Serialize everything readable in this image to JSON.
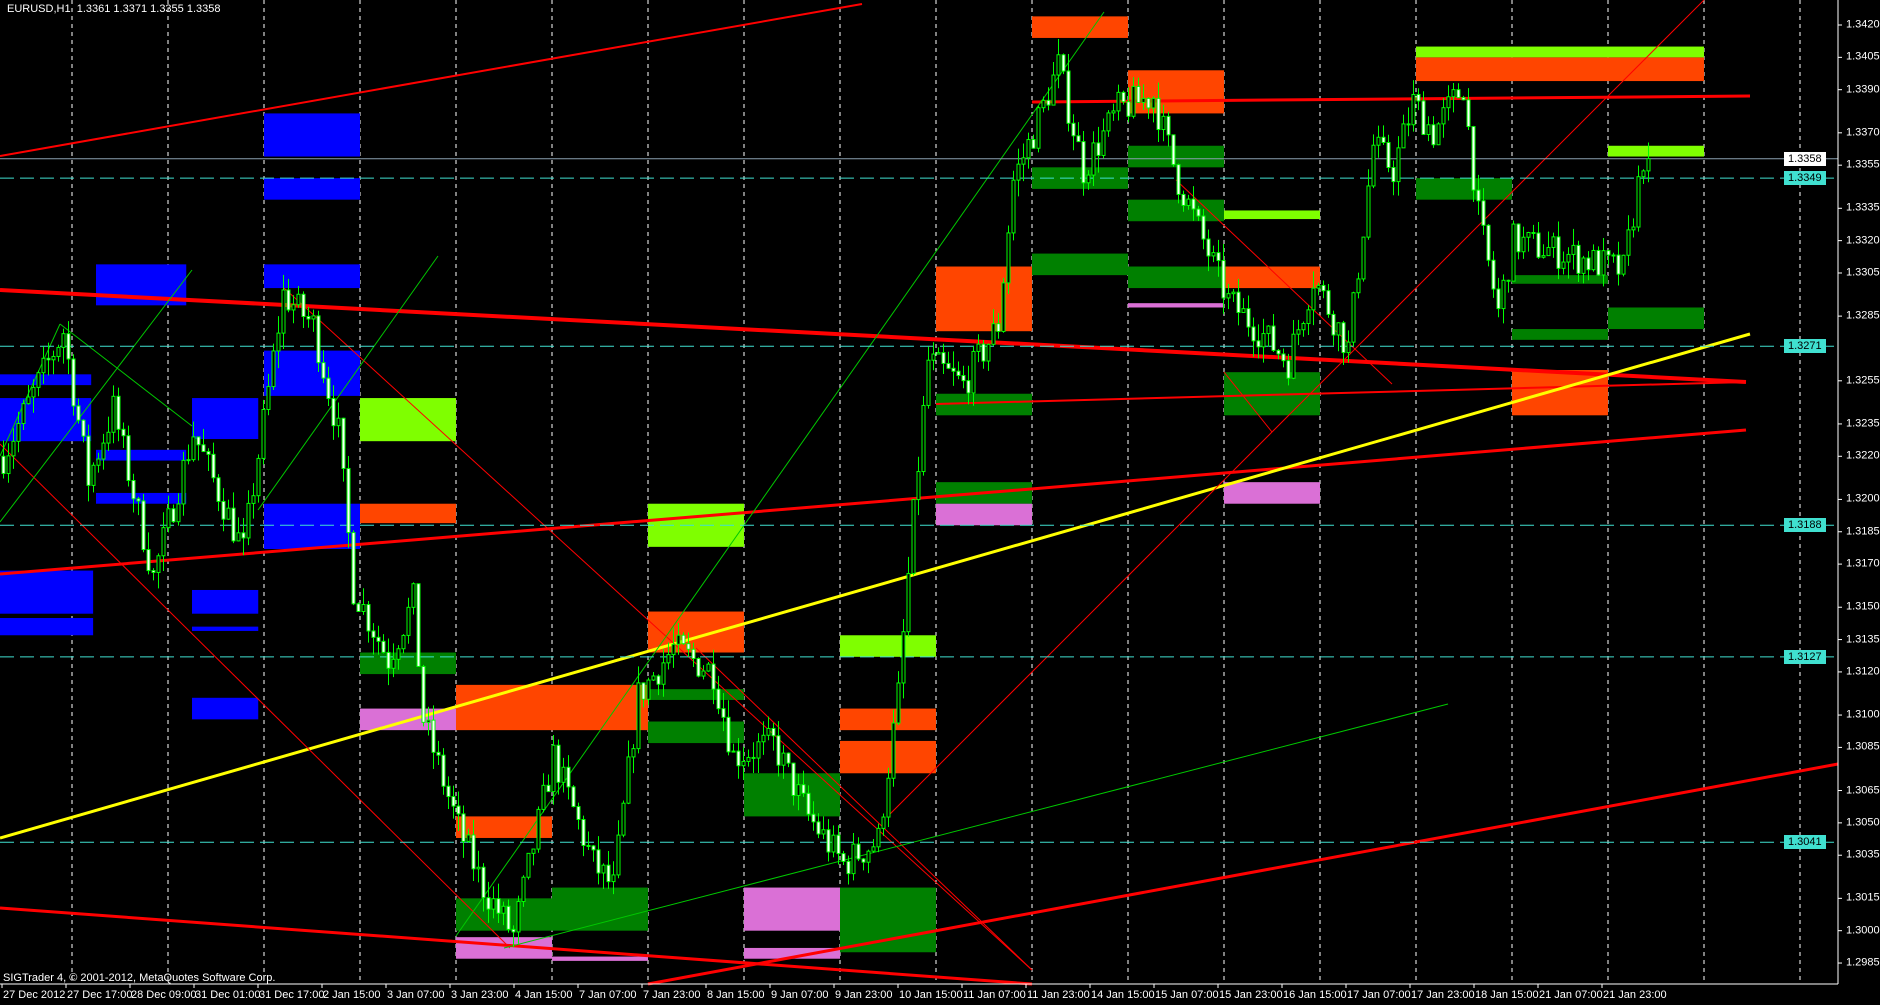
{
  "header": {
    "symbol": "EURUSD,H1",
    "ohlc": [
      "1.3361",
      "1.3371",
      "1.3355",
      "1.3358"
    ]
  },
  "copyright": "SIGTrader 4, © 2001-2012, MetaQuotes Software Corp.",
  "colors": {
    "background": "#000000",
    "candles": "#00ff00",
    "level_line": "#40e0d0",
    "trendline": "#ff0000",
    "yellow_trendline": "#ffff00",
    "supply": "#ff4500",
    "demand": "#008000",
    "weak_demand": "#7fff00",
    "blue_zone": "#0000ff",
    "pink_zone": "#da70d6"
  },
  "price_axis": {
    "ticks": [
      "1.3420",
      "1.3405",
      "1.3390",
      "1.3370",
      "1.3355",
      "1.3335",
      "1.3320",
      "1.3305",
      "1.3285",
      "1.3255",
      "1.3235",
      "1.3220",
      "1.3200",
      "1.3185",
      "1.3170",
      "1.3150",
      "1.3135",
      "1.3120",
      "1.3100",
      "1.3085",
      "1.3065",
      "1.3050",
      "1.3035",
      "1.3015",
      "1.3000",
      "1.2985"
    ],
    "bid": "1.3358",
    "levels": [
      "1.3349",
      "1.3271",
      "1.3188",
      "1.3127",
      "1.3041"
    ]
  },
  "time_axis": {
    "labels": [
      "27 Dec 2012",
      "27 Dec 17:00",
      "28 Dec 09:00",
      "31 Dec 01:00",
      "31 Dec 17:00",
      "2 Jan 15:00",
      "3 Jan 07:00",
      "3 Jan 23:00",
      "4 Jan 15:00",
      "7 Jan 07:00",
      "7 Jan 23:00",
      "8 Jan 15:00",
      "9 Jan 07:00",
      "9 Jan 23:00",
      "10 Jan 15:00",
      "11 Jan 07:00",
      "11 Jan 23:00",
      "14 Jan 15:00",
      "15 Jan 07:00",
      "15 Jan 23:00",
      "16 Jan 15:00",
      "17 Jan 07:00",
      "17 Jan 23:00",
      "18 Jan 15:00",
      "21 Jan 07:00",
      "21 Jan 23:00"
    ]
  },
  "chart_data": {
    "type": "candlestick",
    "ylim": [
      1.2985,
      1.342
    ],
    "price_path": [
      [
        0,
        1.322
      ],
      [
        12,
        1.3278
      ],
      [
        17,
        1.3209
      ],
      [
        22,
        1.3242
      ],
      [
        30,
        1.3164
      ],
      [
        38,
        1.3231
      ],
      [
        48,
        1.3176
      ],
      [
        56,
        1.3295
      ],
      [
        62,
        1.3281
      ],
      [
        67,
        1.3231
      ],
      [
        70,
        1.3159
      ],
      [
        77,
        1.3126
      ],
      [
        82,
        1.3153
      ],
      [
        84,
        1.3098
      ],
      [
        91,
        1.3048
      ],
      [
        96,
        1.302
      ],
      [
        102,
        1.2998
      ],
      [
        110,
        1.3081
      ],
      [
        118,
        1.3031
      ],
      [
        122,
        1.302
      ],
      [
        127,
        1.3109
      ],
      [
        134,
        1.3131
      ],
      [
        142,
        1.312
      ],
      [
        146,
        1.3081
      ],
      [
        154,
        1.3087
      ],
      [
        161,
        1.3053
      ],
      [
        168,
        1.3031
      ],
      [
        175,
        1.3042
      ],
      [
        179,
        1.3109
      ],
      [
        182,
        1.3192
      ],
      [
        185,
        1.3264
      ],
      [
        192,
        1.3253
      ],
      [
        199,
        1.3281
      ],
      [
        202,
        1.3348
      ],
      [
        206,
        1.337
      ],
      [
        211,
        1.3401
      ],
      [
        216,
        1.3353
      ],
      [
        223,
        1.3381
      ],
      [
        230,
        1.3387
      ],
      [
        235,
        1.3348
      ],
      [
        240,
        1.332
      ],
      [
        245,
        1.3292
      ],
      [
        250,
        1.3281
      ],
      [
        257,
        1.3264
      ],
      [
        262,
        1.3303
      ],
      [
        269,
        1.327
      ],
      [
        274,
        1.3364
      ],
      [
        278,
        1.3353
      ],
      [
        282,
        1.3384
      ],
      [
        286,
        1.337
      ],
      [
        292,
        1.3392
      ],
      [
        295,
        1.3331
      ],
      [
        299,
        1.3287
      ],
      [
        302,
        1.332
      ],
      [
        312,
        1.3314
      ],
      [
        324,
        1.3306
      ],
      [
        328,
        1.3359
      ],
      [
        329,
        1.3358
      ]
    ],
    "zones": [
      {
        "kind": "blue_zone",
        "cols": [
          3,
          4
        ],
        "prices": [
          1.3379,
          1.3359
        ]
      },
      {
        "kind": "blue_zone",
        "cols": [
          3,
          4
        ],
        "prices": [
          1.3349,
          1.3339
        ]
      },
      {
        "kind": "blue_zone",
        "cols": [
          1.25,
          2.19
        ],
        "prices": [
          1.3309,
          1.329
        ]
      },
      {
        "kind": "blue_zone",
        "cols": [
          3,
          4
        ],
        "prices": [
          1.3309,
          1.3298
        ]
      },
      {
        "kind": "blue_zone",
        "cols": [
          0.25,
          1.2
        ],
        "prices": [
          1.3258,
          1.3253
        ]
      },
      {
        "kind": "blue_zone",
        "cols": [
          0.25,
          1.2
        ],
        "prices": [
          1.3247,
          1.3227
        ]
      },
      {
        "kind": "blue_zone",
        "cols": [
          1.25,
          2.19
        ],
        "prices": [
          1.3223,
          1.3218
        ]
      },
      {
        "kind": "blue_zone",
        "cols": [
          1.25,
          2.19
        ],
        "prices": [
          1.3203,
          1.3198
        ]
      },
      {
        "kind": "blue_zone",
        "cols": [
          2.25,
          2.94
        ],
        "prices": [
          1.3247,
          1.3228
        ]
      },
      {
        "kind": "blue_zone",
        "cols": [
          3,
          4
        ],
        "prices": [
          1.3269,
          1.3248
        ]
      },
      {
        "kind": "blue_zone",
        "cols": [
          3,
          4
        ],
        "prices": [
          1.3198,
          1.3177
        ]
      },
      {
        "kind": "blue_zone",
        "cols": [
          0.25,
          1.22
        ],
        "prices": [
          1.3167,
          1.3147
        ]
      },
      {
        "kind": "blue_zone",
        "cols": [
          0.25,
          1.22
        ],
        "prices": [
          1.3145,
          1.3137
        ]
      },
      {
        "kind": "blue_zone",
        "cols": [
          2.25,
          2.94
        ],
        "prices": [
          1.3158,
          1.3147
        ]
      },
      {
        "kind": "blue_zone",
        "cols": [
          2.25,
          2.94
        ],
        "prices": [
          1.3141,
          1.3139
        ]
      },
      {
        "kind": "blue_zone",
        "cols": [
          2.25,
          2.94
        ],
        "prices": [
          1.3108,
          1.3098
        ]
      },
      {
        "kind": "supply",
        "cols": [
          11,
          12
        ],
        "prices": [
          1.3424,
          1.3414
        ]
      },
      {
        "kind": "supply",
        "cols": [
          12,
          13
        ],
        "prices": [
          1.3399,
          1.3379
        ]
      },
      {
        "kind": "supply",
        "cols": [
          15,
          18
        ],
        "prices": [
          1.3405,
          1.3394
        ]
      },
      {
        "kind": "supply",
        "cols": [
          10,
          11
        ],
        "prices": [
          1.3308,
          1.3278
        ]
      },
      {
        "kind": "supply",
        "cols": [
          13,
          14
        ],
        "prices": [
          1.3308,
          1.3298
        ]
      },
      {
        "kind": "supply",
        "cols": [
          16,
          17
        ],
        "prices": [
          1.326,
          1.3239
        ]
      },
      {
        "kind": "supply",
        "cols": [
          4,
          5
        ],
        "prices": [
          1.3198,
          1.3189
        ]
      },
      {
        "kind": "supply",
        "cols": [
          7,
          8
        ],
        "prices": [
          1.3148,
          1.3129
        ]
      },
      {
        "kind": "supply",
        "cols": [
          5,
          7
        ],
        "prices": [
          1.3114,
          1.3093
        ]
      },
      {
        "kind": "supply",
        "cols": [
          9,
          10
        ],
        "prices": [
          1.3103,
          1.3093
        ]
      },
      {
        "kind": "supply",
        "cols": [
          9,
          10
        ],
        "prices": [
          1.3088,
          1.3073
        ]
      },
      {
        "kind": "supply",
        "cols": [
          5,
          6
        ],
        "prices": [
          1.3053,
          1.3043
        ]
      },
      {
        "kind": "weak_demand",
        "cols": [
          15,
          18
        ],
        "prices": [
          1.341,
          1.3405
        ]
      },
      {
        "kind": "weak_demand",
        "cols": [
          17,
          18
        ],
        "prices": [
          1.3364,
          1.3359
        ]
      },
      {
        "kind": "weak_demand",
        "cols": [
          13,
          14
        ],
        "prices": [
          1.3334,
          1.333
        ]
      },
      {
        "kind": "weak_demand",
        "cols": [
          4,
          5
        ],
        "prices": [
          1.3247,
          1.3227
        ]
      },
      {
        "kind": "weak_demand",
        "cols": [
          7,
          8
        ],
        "prices": [
          1.3198,
          1.3178
        ]
      },
      {
        "kind": "weak_demand",
        "cols": [
          9,
          10
        ],
        "prices": [
          1.3137,
          1.3127
        ]
      },
      {
        "kind": "demand",
        "cols": [
          12,
          13
        ],
        "prices": [
          1.3364,
          1.3354
        ]
      },
      {
        "kind": "demand",
        "cols": [
          11,
          12
        ],
        "prices": [
          1.3354,
          1.3344
        ]
      },
      {
        "kind": "demand",
        "cols": [
          12,
          13
        ],
        "prices": [
          1.3339,
          1.3329
        ]
      },
      {
        "kind": "demand",
        "cols": [
          15,
          16
        ],
        "prices": [
          1.3349,
          1.3339
        ]
      },
      {
        "kind": "demand",
        "cols": [
          11,
          12
        ],
        "prices": [
          1.3314,
          1.3304
        ]
      },
      {
        "kind": "demand",
        "cols": [
          12,
          13
        ],
        "prices": [
          1.3308,
          1.3298
        ]
      },
      {
        "kind": "demand",
        "cols": [
          16,
          17
        ],
        "prices": [
          1.3304,
          1.33
        ]
      },
      {
        "kind": "demand",
        "cols": [
          17,
          18
        ],
        "prices": [
          1.3289,
          1.3279
        ]
      },
      {
        "kind": "demand",
        "cols": [
          16,
          17
        ],
        "prices": [
          1.3279,
          1.3274
        ]
      },
      {
        "kind": "demand",
        "cols": [
          13,
          14
        ],
        "prices": [
          1.3259,
          1.3239
        ]
      },
      {
        "kind": "demand",
        "cols": [
          10,
          11
        ],
        "prices": [
          1.3249,
          1.3239
        ]
      },
      {
        "kind": "demand",
        "cols": [
          10,
          11
        ],
        "prices": [
          1.3208,
          1.3198
        ]
      },
      {
        "kind": "demand",
        "cols": [
          4,
          5
        ],
        "prices": [
          1.3129,
          1.3119
        ]
      },
      {
        "kind": "demand",
        "cols": [
          7,
          8
        ],
        "prices": [
          1.3112,
          1.3107
        ]
      },
      {
        "kind": "demand",
        "cols": [
          7,
          8
        ],
        "prices": [
          1.3097,
          1.3087
        ]
      },
      {
        "kind": "demand",
        "cols": [
          8,
          9
        ],
        "prices": [
          1.3073,
          1.3053
        ]
      },
      {
        "kind": "demand",
        "cols": [
          5,
          6
        ],
        "prices": [
          1.3015,
          1.3
        ]
      },
      {
        "kind": "demand",
        "cols": [
          6,
          7
        ],
        "prices": [
          1.302,
          1.3
        ]
      },
      {
        "kind": "demand",
        "cols": [
          9,
          10
        ],
        "prices": [
          1.302,
          1.299
        ]
      },
      {
        "kind": "pink_zone",
        "cols": [
          12,
          13
        ],
        "prices": [
          1.3291,
          1.3289
        ]
      },
      {
        "kind": "pink_zone",
        "cols": [
          10,
          11
        ],
        "prices": [
          1.3198,
          1.3188
        ]
      },
      {
        "kind": "pink_zone",
        "cols": [
          13,
          14
        ],
        "prices": [
          1.3208,
          1.3198
        ]
      },
      {
        "kind": "pink_zone",
        "cols": [
          4,
          5
        ],
        "prices": [
          1.3103,
          1.3093
        ]
      },
      {
        "kind": "pink_zone",
        "cols": [
          8,
          9
        ],
        "prices": [
          1.302,
          1.3
        ]
      },
      {
        "kind": "pink_zone",
        "cols": [
          5,
          6
        ],
        "prices": [
          1.2997,
          1.2987
        ]
      },
      {
        "kind": "pink_zone",
        "cols": [
          6,
          7
        ],
        "prices": [
          1.2988,
          1.2986
        ]
      },
      {
        "kind": "pink_zone",
        "cols": [
          8,
          9
        ],
        "prices": [
          1.2992,
          1.2987
        ]
      }
    ]
  }
}
